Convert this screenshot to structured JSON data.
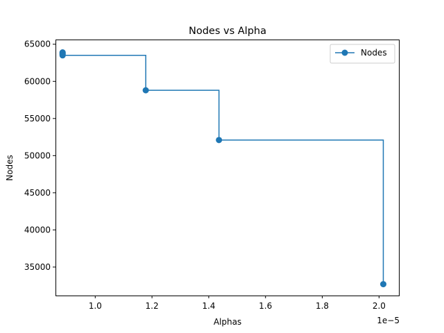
{
  "chart_data": {
    "type": "line",
    "drawstyle": "steps-post",
    "title": "Nodes vs Alpha",
    "xlabel": "Alphas",
    "ylabel": "Nodes",
    "x_offset_label": "1e−5",
    "x_scale_exponent": -5,
    "xlim": [
      0.86,
      2.07
    ],
    "ylim": [
      31165,
      65630
    ],
    "x_ticks": [
      1.0,
      1.2,
      1.4,
      1.6,
      1.8,
      2.0
    ],
    "x_tick_labels": [
      "1.0",
      "1.2",
      "1.4",
      "1.6",
      "1.8",
      "2.0"
    ],
    "y_ticks": [
      35000,
      40000,
      45000,
      50000,
      55000,
      60000,
      65000
    ],
    "y_tick_labels": [
      "35000",
      "40000",
      "45000",
      "50000",
      "55000",
      "60000",
      "65000"
    ],
    "grid": false,
    "legend_position": "upper right",
    "color": "#1f77b4",
    "series": [
      {
        "name": "Nodes",
        "x": [
          0.885,
          0.885,
          0.885,
          0.885,
          0.885,
          1.178,
          1.436,
          2.015
        ],
        "y": [
          63900,
          63800,
          63700,
          63600,
          63500,
          58800,
          52100,
          32700
        ]
      }
    ]
  }
}
